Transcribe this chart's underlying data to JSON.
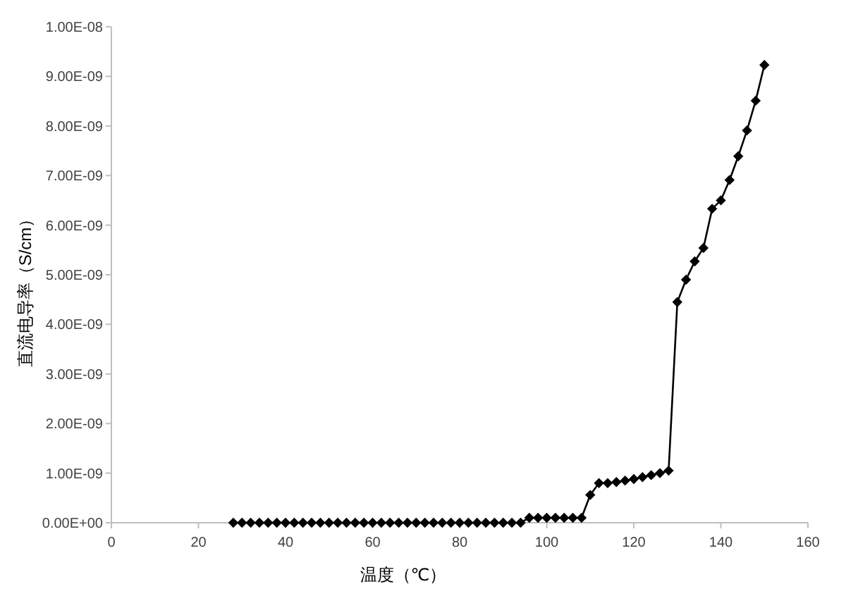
{
  "chart_data": {
    "type": "line",
    "xlabel": "温度（℃）",
    "ylabel": "直流电导率（S/cm）",
    "x": [
      28,
      30,
      32,
      34,
      36,
      38,
      40,
      42,
      44,
      46,
      48,
      50,
      52,
      54,
      56,
      58,
      60,
      62,
      64,
      66,
      68,
      70,
      72,
      74,
      76,
      78,
      80,
      82,
      84,
      86,
      88,
      90,
      92,
      94,
      96,
      98,
      100,
      102,
      104,
      106,
      108,
      110,
      112,
      114,
      116,
      118,
      120,
      122,
      124,
      126,
      128,
      130,
      132,
      134,
      136,
      138,
      140,
      142,
      144,
      146,
      148,
      150
    ],
    "series": [
      {
        "color": "#000000",
        "values": [
          0,
          0,
          0,
          0,
          0,
          0,
          0,
          0,
          0,
          0,
          0,
          0,
          0,
          0,
          0,
          0,
          0,
          0,
          0,
          0,
          0,
          0,
          0,
          0,
          0,
          0,
          0,
          0,
          0,
          0,
          0,
          0,
          0,
          0,
          1e-10,
          1e-10,
          1e-10,
          1e-10,
          1e-10,
          1e-10,
          1e-10,
          5.6e-10,
          8e-10,
          8e-10,
          8.2e-10,
          8.5e-10,
          8.8e-10,
          9.2e-10,
          9.6e-10,
          1e-09,
          1.05e-09,
          4.45e-09,
          4.9e-09,
          5.27e-09,
          5.54e-09,
          6.33e-09,
          6.5e-09,
          6.91e-09,
          7.39e-09,
          7.91e-09,
          8.51e-09,
          9.23e-09
        ]
      }
    ],
    "xlim": [
      0,
      160
    ],
    "xticks": [
      0,
      20,
      40,
      60,
      80,
      100,
      120,
      140,
      160
    ],
    "ylim": [
      0,
      1e-08
    ],
    "yticks": [
      {
        "value": 0,
        "label": "0.00E+00"
      },
      {
        "value": 1e-09,
        "label": "1.00E-09"
      },
      {
        "value": 2e-09,
        "label": "2.00E-09"
      },
      {
        "value": 3e-09,
        "label": "3.00E-09"
      },
      {
        "value": 4e-09,
        "label": "4.00E-09"
      },
      {
        "value": 5e-09,
        "label": "5.00E-09"
      },
      {
        "value": 6e-09,
        "label": "6.00E-09"
      },
      {
        "value": 7e-09,
        "label": "7.00E-09"
      },
      {
        "value": 8e-09,
        "label": "8.00E-09"
      },
      {
        "value": 9e-09,
        "label": "9.00E-09"
      },
      {
        "value": 1e-08,
        "label": "1.00E-08"
      }
    ],
    "grid": false,
    "marker": "diamond",
    "line_style": "solid"
  }
}
